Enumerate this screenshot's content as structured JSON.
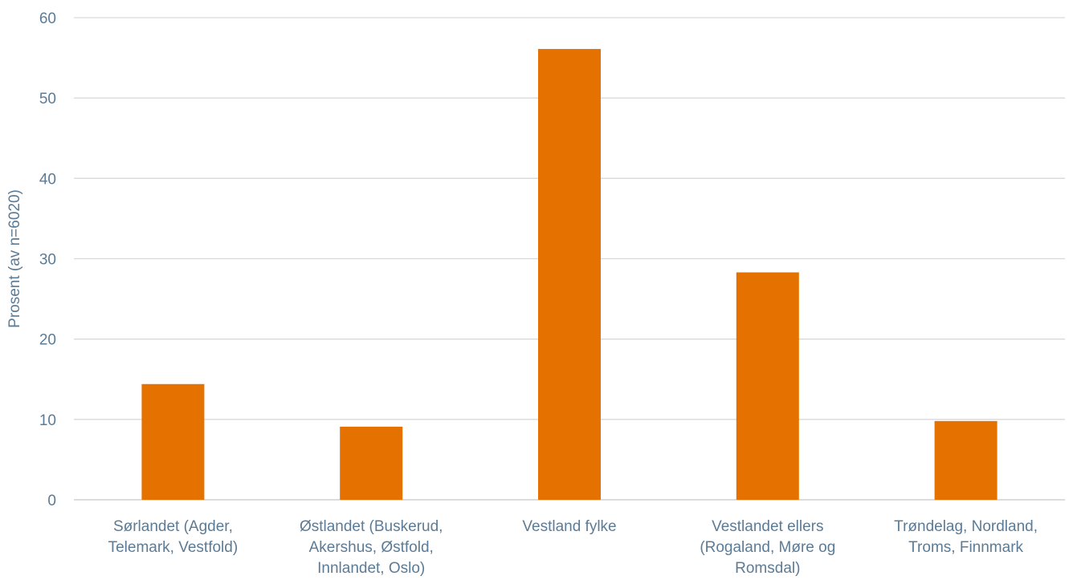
{
  "chart_data": {
    "type": "bar",
    "title": "",
    "xlabel": "",
    "ylabel": "Prosent (av n=6020)",
    "ylim": [
      0,
      60
    ],
    "yticks": [
      "0",
      "10",
      "20",
      "30",
      "40",
      "50",
      "60"
    ],
    "grid": true,
    "legend": "none",
    "bar_color": "#e57200",
    "categories": [
      [
        "Sørlandet (Agder,",
        "Telemark, Vestfold)"
      ],
      [
        "Østlandet (Buskerud,",
        "Akershus, Østfold,",
        "Innlandet, Oslo)"
      ],
      [
        "Vestland fylke"
      ],
      [
        "Vestlandet ellers",
        "(Rogaland, Møre og",
        "Romsdal)"
      ],
      [
        "Trøndelag, Nordland,",
        "Troms, Finnmark"
      ]
    ],
    "values": [
      14.4,
      9.1,
      56.1,
      28.3,
      9.8
    ]
  }
}
